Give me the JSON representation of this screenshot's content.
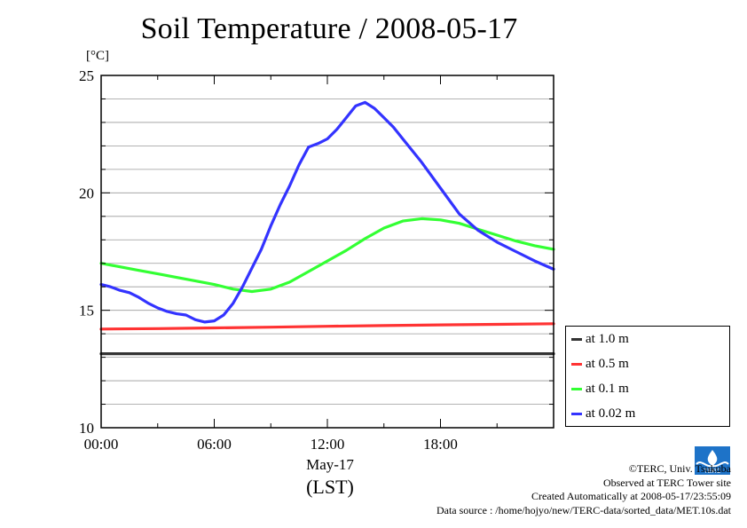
{
  "chart_data": {
    "type": "line",
    "title": "Soil Temperature / 2008-05-17",
    "ylabel": "[°C]",
    "xlabel": "May-17",
    "xlabel2": "(LST)",
    "ylim": [
      10,
      25
    ],
    "yticks": [
      "10",
      "15",
      "20",
      "25"
    ],
    "xlim_hours": [
      0,
      24
    ],
    "xticks": [
      "00:00",
      "06:00",
      "12:00",
      "18:00"
    ],
    "grid": true,
    "legend_position": "right-bottom",
    "series": [
      {
        "name": "at 1.0 m",
        "color": "#333333",
        "x": [
          0,
          6,
          12,
          18,
          24
        ],
        "y": [
          13.15,
          13.15,
          13.15,
          13.15,
          13.15
        ]
      },
      {
        "name": "at 0.5 m",
        "color": "#ff3333",
        "x": [
          0,
          3,
          6,
          9,
          12,
          15,
          18,
          21,
          24
        ],
        "y": [
          14.2,
          14.22,
          14.25,
          14.28,
          14.32,
          14.35,
          14.38,
          14.4,
          14.43
        ]
      },
      {
        "name": "at 0.1 m",
        "color": "#33ff33",
        "x": [
          0,
          1,
          2,
          3,
          4,
          5,
          6,
          7,
          8,
          9,
          10,
          11,
          12,
          13,
          14,
          15,
          16,
          17,
          18,
          19,
          20,
          21,
          22,
          23,
          24
        ],
        "y": [
          17.0,
          16.85,
          16.7,
          16.55,
          16.4,
          16.25,
          16.1,
          15.9,
          15.8,
          15.9,
          16.2,
          16.65,
          17.1,
          17.55,
          18.05,
          18.5,
          18.8,
          18.9,
          18.85,
          18.7,
          18.45,
          18.2,
          17.95,
          17.75,
          17.6
        ]
      },
      {
        "name": "at 0.02 m",
        "color": "#3333ff",
        "x": [
          0,
          0.5,
          1,
          1.5,
          2,
          2.5,
          3,
          3.5,
          4,
          4.5,
          5,
          5.5,
          6,
          6.5,
          7,
          7.5,
          8,
          8.5,
          9,
          9.5,
          10,
          10.5,
          11,
          11.5,
          12,
          12.5,
          13,
          13.5,
          14,
          14.5,
          15,
          15.5,
          16,
          17,
          18,
          19,
          20,
          21,
          22,
          23,
          24
        ],
        "y": [
          16.1,
          16.0,
          15.85,
          15.75,
          15.55,
          15.3,
          15.1,
          14.95,
          14.85,
          14.8,
          14.6,
          14.5,
          14.55,
          14.8,
          15.3,
          16.0,
          16.8,
          17.6,
          18.6,
          19.5,
          20.3,
          21.2,
          21.95,
          22.1,
          22.3,
          22.7,
          23.2,
          23.7,
          23.85,
          23.6,
          23.2,
          22.8,
          22.3,
          21.3,
          20.2,
          19.1,
          18.4,
          17.9,
          17.5,
          17.1,
          16.75
        ]
      }
    ]
  },
  "footer": {
    "copyright": "©TERC, Univ. Tsukuba",
    "observed": "Observed at TERC Tower site",
    "created": "Created Automatically at 2008-05-17/23:55:09",
    "source": "Data source : /home/hojyo/new/TERC-data/sorted_data/MET.10s.dat",
    "logo_text": "TERC"
  }
}
